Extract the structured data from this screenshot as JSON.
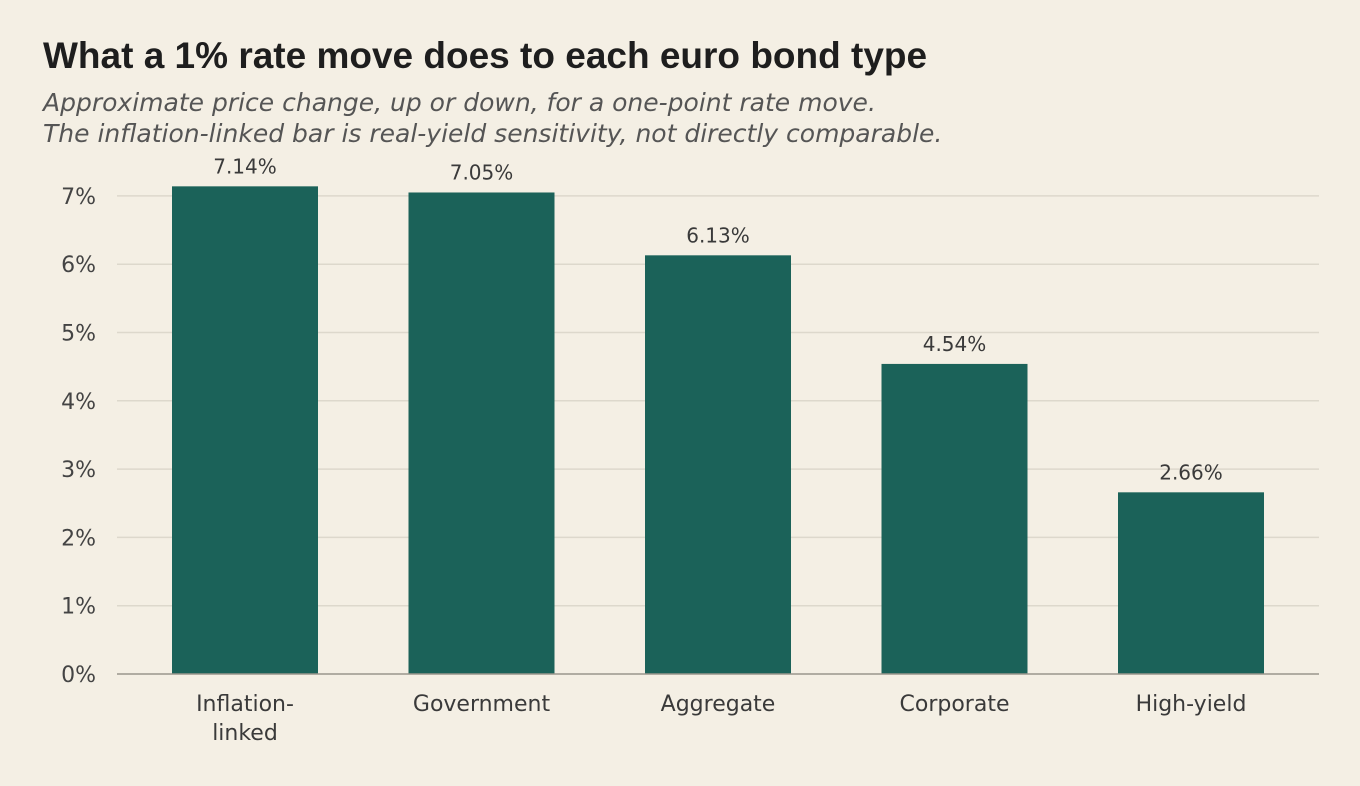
{
  "title": "What a 1% rate move does to each euro bond type",
  "subtitle_lines": [
    "Approximate price change, up or down, for a one-point rate move.",
    "The inflation-linked bar is real-yield sensitivity, not directly comparable."
  ],
  "colors": {
    "background": "#f4efe4",
    "bar": "#1b6259",
    "grid": "#ddd8cc",
    "axis": "#9a968c"
  },
  "chart_data": {
    "type": "bar",
    "categories": [
      [
        "Inflation-",
        "linked"
      ],
      [
        "Government"
      ],
      [
        "Aggregate"
      ],
      [
        "Corporate"
      ],
      [
        "High-yield"
      ]
    ],
    "values": [
      7.14,
      7.05,
      6.13,
      4.54,
      2.66
    ],
    "value_labels": [
      "7.14%",
      "7.05%",
      "6.13%",
      "4.54%",
      "2.66%"
    ],
    "yticks": [
      0,
      1,
      2,
      3,
      4,
      5,
      6,
      7
    ],
    "ytick_labels": [
      "0%",
      "1%",
      "2%",
      "3%",
      "4%",
      "5%",
      "6%",
      "7%"
    ],
    "ylim": [
      0,
      7.2
    ],
    "grid": true,
    "legend": "none"
  }
}
